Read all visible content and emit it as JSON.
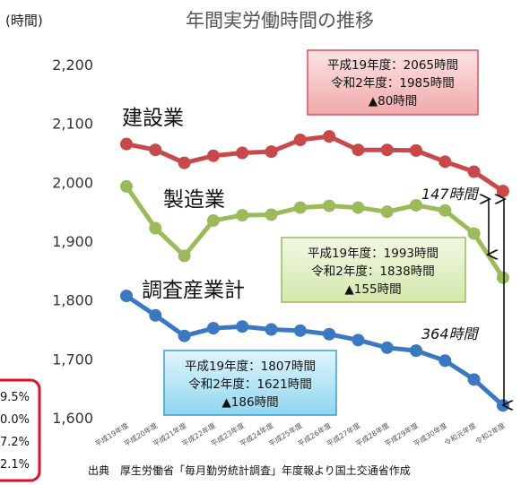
{
  "chart_data": {
    "type": "line",
    "title": "年間実労働時間の推移",
    "ylabel": "(時間)",
    "ylim": [
      1600,
      2200
    ],
    "yticks": [
      "2,200",
      "2,100",
      "2,000",
      "1,900",
      "1,800",
      "1,700",
      "1,600"
    ],
    "ytick_values": [
      2200,
      2100,
      2000,
      1900,
      1800,
      1700,
      1600
    ],
    "categories": [
      "平成19年度",
      "平成20年度",
      "平成21年度",
      "平成22年度",
      "平成23年度",
      "平成24年度",
      "平成25年度",
      "平成26年度",
      "平成27年度",
      "平成28年度",
      "平成29年度",
      "平成30年度",
      "令和元年度",
      "令和2年度"
    ],
    "grid": false,
    "series": [
      {
        "name": "建設業",
        "color": "#c9484a",
        "values": [
          2065,
          2055,
          2033,
          2045,
          2050,
          2052,
          2072,
          2078,
          2055,
          2055,
          2054,
          2035,
          2018,
          1985
        ]
      },
      {
        "name": "製造業",
        "color": "#9bbb59",
        "values": [
          1993,
          1922,
          1875,
          1935,
          1944,
          1945,
          1957,
          1960,
          1957,
          1950,
          1961,
          1952,
          1913,
          1838
        ]
      },
      {
        "name": "調査産業計",
        "color": "#3b78c2",
        "values": [
          1807,
          1774,
          1739,
          1752,
          1755,
          1750,
          1748,
          1742,
          1732,
          1719,
          1714,
          1697,
          1665,
          1621
        ]
      }
    ],
    "callouts": [
      {
        "line1": "平成19年度：2065時間",
        "line2": "令和2年度：1985時間",
        "line3": "▲80時間"
      },
      {
        "line1": "平成19年度：1993時間",
        "line2": "令和2年度：1838時間",
        "line3": "▲155時間"
      },
      {
        "line1": "平成19年度：1807時間",
        "line2": "令和2年度：1621時間",
        "line3": "▲186時間"
      }
    ],
    "differences": [
      {
        "label": "147時間"
      },
      {
        "label": "364時間"
      }
    ],
    "source": "出典　厚生労働省「毎月勤労統計調査」年度報より国土交通省作成"
  },
  "colors": {
    "construction_box_fill": "#f6c7c7",
    "construction_box_border": "#d9535a",
    "manufacturing_box_fill": "#e6f2cf",
    "manufacturing_box_border": "#9bbb59",
    "all_box_fill": "#b9e6f6",
    "all_box_border": "#3b9fd0",
    "highlight_border": "#e0102a"
  },
  "edge_fragment": {
    "lines": [
      "9.5%",
      "0.0%",
      "7.2%",
      "2.1%"
    ]
  }
}
